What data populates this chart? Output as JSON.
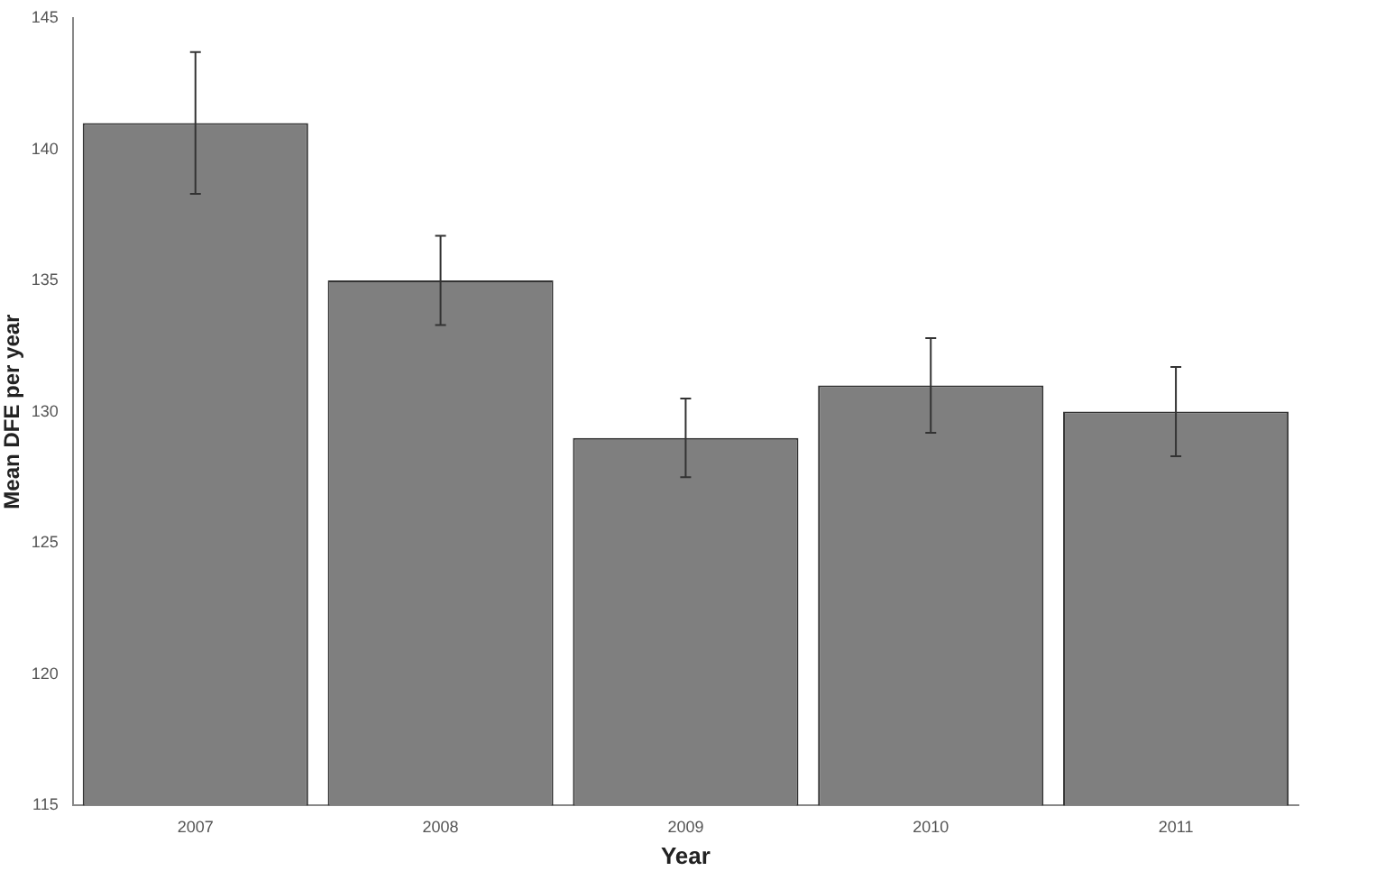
{
  "chart_data": {
    "type": "bar",
    "xlabel": "Year",
    "ylabel": "Mean DFE per year",
    "categories": [
      "2007",
      "2008",
      "2009",
      "2010",
      "2011"
    ],
    "values": [
      141,
      135,
      129,
      131,
      130
    ],
    "errors": [
      2.7,
      1.7,
      1.5,
      1.8,
      1.7
    ],
    "color": "#7f7f7f",
    "ylim": [
      115,
      145
    ],
    "yticks": [
      115,
      120,
      125,
      130,
      135,
      140,
      145
    ],
    "grid": false,
    "legend": false
  }
}
